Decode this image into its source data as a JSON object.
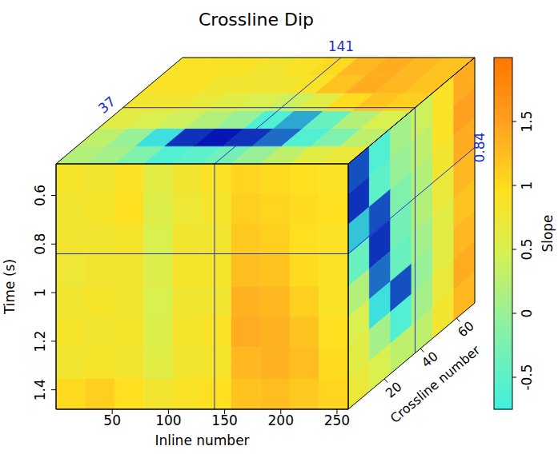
{
  "chart_data": {
    "type": "heatmap",
    "title": "Crossline Dip",
    "x_label": "Inline number",
    "y_label": "Time (s)",
    "z_label": "Crossline number",
    "colorbar_label": "Slope",
    "xlim": [
      0,
      260
    ],
    "xticks": [
      50,
      100,
      150,
      200,
      250
    ],
    "ylim": [
      0.47,
      1.48
    ],
    "yticks": [
      0.6,
      0.8,
      1,
      1.2,
      1.4
    ],
    "zlim": [
      0,
      70
    ],
    "zticks": [
      20,
      40,
      60
    ],
    "color_range": [
      -0.75,
      2
    ],
    "color_ticks": [
      -0.5,
      0,
      0.5,
      1,
      1.5
    ],
    "slices": {
      "crossline": 37,
      "inline": 141,
      "time": 0.84
    },
    "front": {
      "x": [
        13,
        39,
        65,
        91,
        117,
        143,
        169,
        195,
        221,
        247
      ],
      "y": [
        0.53,
        0.66,
        0.78,
        0.91,
        1.04,
        1.16,
        1.29,
        1.42
      ],
      "cells": [
        [
          0.85,
          0.8,
          0.9,
          0.6,
          0.8,
          0.9,
          1.05,
          1.0,
          0.95,
          0.9
        ],
        [
          0.8,
          0.85,
          0.95,
          0.55,
          0.75,
          0.85,
          1.1,
          1.05,
          1.0,
          0.95
        ],
        [
          0.8,
          0.8,
          0.85,
          0.5,
          0.8,
          0.8,
          1.15,
          1.1,
          0.95,
          0.9
        ],
        [
          0.75,
          0.8,
          0.8,
          0.55,
          0.85,
          0.85,
          1.25,
          1.2,
          1.0,
          0.9
        ],
        [
          0.8,
          0.85,
          0.8,
          0.5,
          0.8,
          0.8,
          1.35,
          1.3,
          1.1,
          0.9
        ],
        [
          0.85,
          0.8,
          0.85,
          0.55,
          0.85,
          0.9,
          1.4,
          1.35,
          1.2,
          0.95
        ],
        [
          0.8,
          0.85,
          0.8,
          0.6,
          0.8,
          0.85,
          1.3,
          1.35,
          1.25,
          1.0
        ],
        [
          1.0,
          1.1,
          0.95,
          0.8,
          0.9,
          0.95,
          1.2,
          1.25,
          1.15,
          1.05
        ]
      ]
    },
    "side": {
      "z": [
        5.8,
        17.5,
        29.2,
        40.8,
        52.5,
        64.2
      ],
      "y": [
        0.53,
        0.66,
        0.78,
        0.91,
        1.04,
        1.16,
        1.29,
        1.42
      ],
      "cells": [
        [
          -1.3,
          -0.6,
          0.1,
          0.4,
          0.9,
          1.4
        ],
        [
          -1.4,
          -0.5,
          0.0,
          0.3,
          0.9,
          1.5
        ],
        [
          -0.9,
          -1.3,
          -0.2,
          0.2,
          0.8,
          1.4
        ],
        [
          -0.4,
          -1.4,
          -0.3,
          0.2,
          0.7,
          1.3
        ],
        [
          0.2,
          -1.2,
          -0.4,
          0.1,
          0.6,
          1.2
        ],
        [
          0.5,
          -0.8,
          -1.3,
          0.0,
          0.6,
          1.3
        ],
        [
          0.6,
          0.1,
          -0.6,
          0.1,
          0.7,
          1.4
        ],
        [
          0.7,
          0.5,
          0.3,
          0.3,
          0.8,
          1.3
        ]
      ]
    },
    "top": {
      "x": [
        13,
        39,
        65,
        91,
        117,
        143,
        169,
        195,
        221,
        247
      ],
      "z": [
        5.8,
        17.5,
        29.2,
        40.8,
        52.5,
        64.2
      ],
      "cells": [
        [
          0.2,
          0.1,
          -0.2,
          -0.6,
          -0.5,
          -0.3,
          0.0,
          0.3,
          0.6,
          0.7
        ],
        [
          0.3,
          0.0,
          -0.8,
          -1.4,
          -1.5,
          -1.4,
          -1.2,
          -0.6,
          -0.2,
          0.3
        ],
        [
          0.6,
          0.5,
          0.4,
          0.2,
          0.0,
          -0.6,
          -1.0,
          -0.4,
          0.2,
          0.5
        ],
        [
          0.8,
          0.8,
          0.7,
          0.6,
          0.5,
          0.4,
          0.6,
          1.0,
          1.2,
          1.1
        ],
        [
          0.9,
          0.9,
          0.8,
          0.8,
          0.8,
          0.9,
          1.2,
          1.4,
          1.3,
          1.2
        ],
        [
          0.9,
          0.9,
          0.9,
          0.8,
          0.9,
          1.0,
          1.3,
          1.4,
          1.3,
          1.2
        ]
      ]
    }
  }
}
